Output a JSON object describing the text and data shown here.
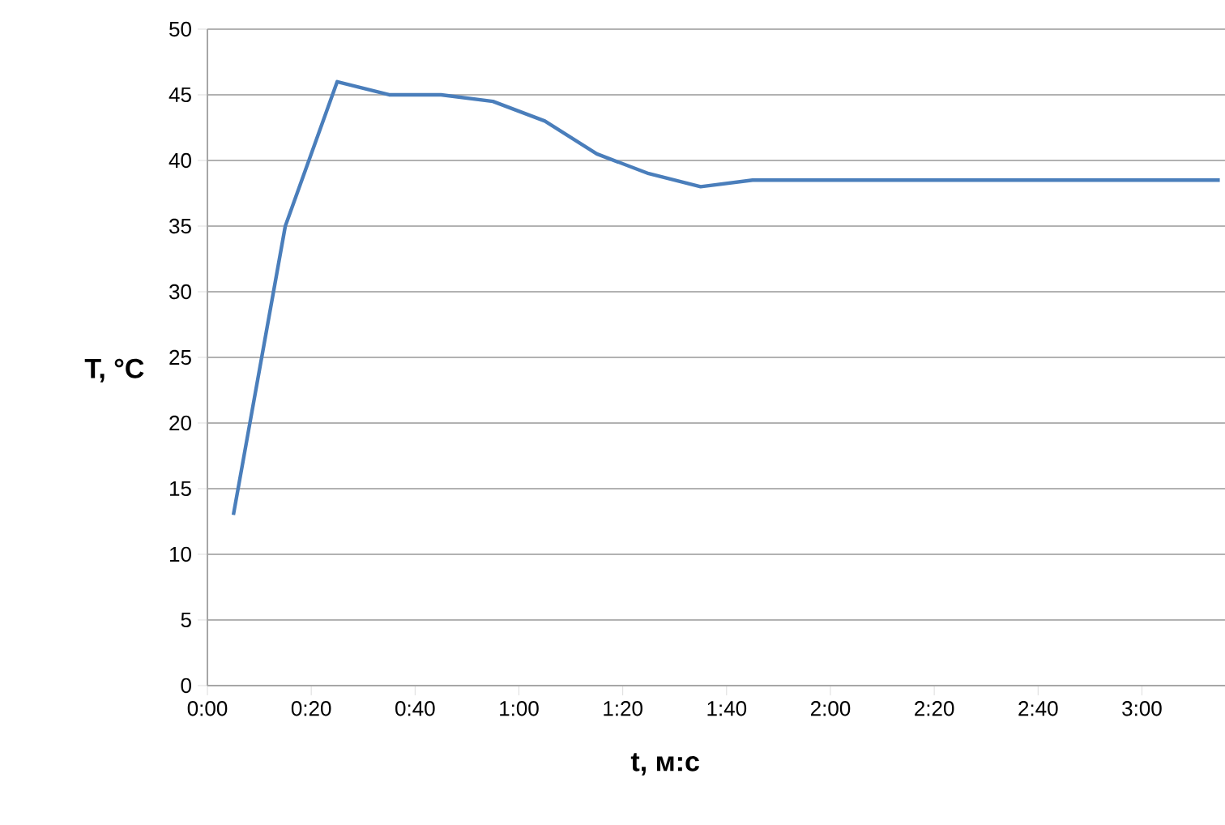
{
  "chart_data": {
    "type": "line",
    "xlabel": "t, м:с",
    "ylabel": "T, °C",
    "x": [
      5,
      15,
      25,
      35,
      45,
      55,
      65,
      75,
      85,
      95,
      105,
      115,
      125,
      135,
      145,
      155,
      165,
      175,
      185,
      195
    ],
    "series": [
      {
        "color": "#4a7ebb",
        "values": [
          13,
          35,
          46,
          45,
          45,
          44.5,
          43,
          40.5,
          39,
          38,
          38.5,
          38.5,
          38.5,
          38.5,
          38.5,
          38.5,
          38.5,
          38.5,
          38.5,
          38.5
        ]
      }
    ],
    "xlim": [
      0,
      196
    ],
    "ylim": [
      0,
      50
    ],
    "xticks": [
      {
        "value": 0,
        "label": "0:00"
      },
      {
        "value": 20,
        "label": "0:20"
      },
      {
        "value": 40,
        "label": "0:40"
      },
      {
        "value": 60,
        "label": "1:00"
      },
      {
        "value": 80,
        "label": "1:20"
      },
      {
        "value": 100,
        "label": "1:40"
      },
      {
        "value": 120,
        "label": "2:00"
      },
      {
        "value": 140,
        "label": "2:20"
      },
      {
        "value": 160,
        "label": "2:40"
      },
      {
        "value": 180,
        "label": "3:00"
      }
    ],
    "yticks": [
      0,
      5,
      10,
      15,
      20,
      25,
      30,
      35,
      40,
      45,
      50
    ],
    "grid": "y",
    "legend": false,
    "marker": "none",
    "line_style": "solid"
  }
}
